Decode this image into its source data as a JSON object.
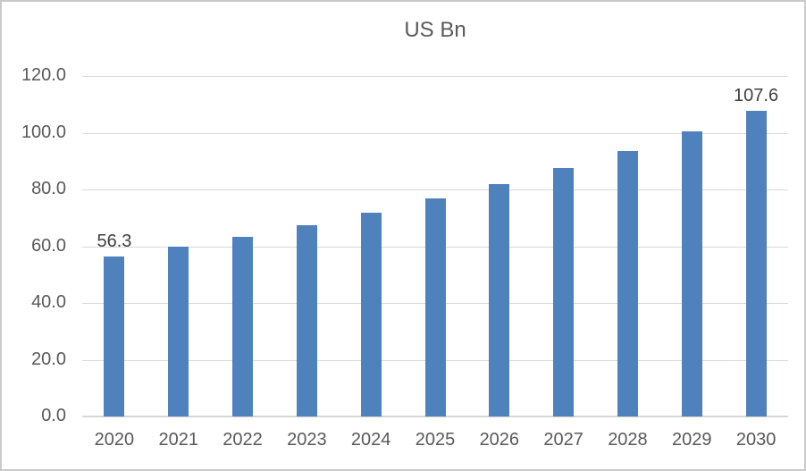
{
  "chart_data": {
    "type": "bar",
    "title": "US Bn",
    "xlabel": "",
    "ylabel": "",
    "categories": [
      "2020",
      "2021",
      "2022",
      "2023",
      "2024",
      "2025",
      "2026",
      "2027",
      "2028",
      "2029",
      "2030"
    ],
    "values": [
      56.3,
      59.8,
      63.4,
      67.5,
      71.9,
      76.7,
      81.8,
      87.5,
      93.5,
      100.5,
      107.6
    ],
    "point_labels": [
      "56.3",
      "",
      "",
      "",
      "",
      "",
      "",
      "",
      "",
      "",
      "107.6"
    ],
    "ylim": [
      0,
      120
    ],
    "ytick_step": 20,
    "ytick_labels_top_to_bottom": [
      "120.0",
      "100.0",
      "80.0",
      "60.0",
      "40.0",
      "20.0",
      "0.0"
    ],
    "grid": "horizontal-only",
    "legend": "none",
    "colors": {
      "bar": "#4f81bd",
      "gridline": "#d9d9d9",
      "axis_line": "#d6d6d6",
      "tick_text": "#595959",
      "title_text": "#595959",
      "data_label_text": "#404040",
      "frame_border": "#c9c9c9",
      "background": "#ffffff"
    }
  }
}
